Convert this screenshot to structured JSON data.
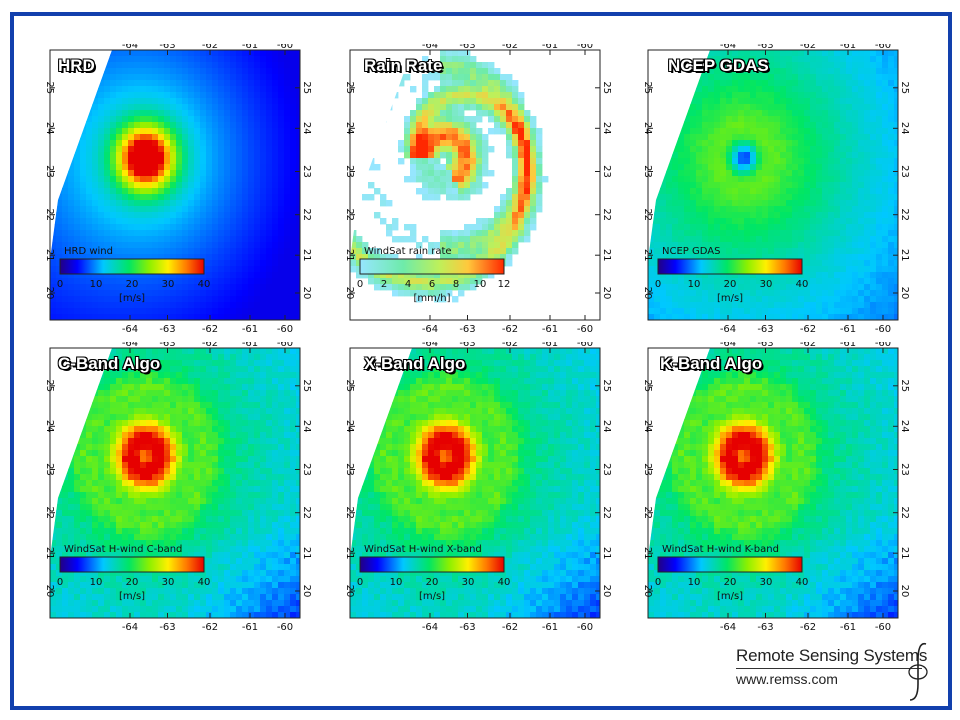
{
  "panels": [
    {
      "title": "HRD",
      "colorbar_label": "HRD wind",
      "colorbar_ticks": [
        "0",
        "10",
        "20",
        "30",
        "40"
      ],
      "units": "[m/s]",
      "palette": "rainbow",
      "field": "hrd"
    },
    {
      "title": "Rain Rate",
      "colorbar_label": "WindSat rain rate",
      "colorbar_ticks": [
        "0",
        "2",
        "4",
        "6",
        "8",
        "10",
        "12"
      ],
      "units": "[mm/h]",
      "palette": "rain",
      "field": "rain"
    },
    {
      "title": "NCEP GDAS",
      "colorbar_label": "NCEP GDAS",
      "colorbar_ticks": [
        "0",
        "10",
        "20",
        "30",
        "40"
      ],
      "units": "[m/s]",
      "palette": "rainbow",
      "field": "ncep"
    },
    {
      "title": "C-Band Algo",
      "colorbar_label": "WindSat H-wind C-band",
      "colorbar_ticks": [
        "0",
        "10",
        "20",
        "30",
        "40"
      ],
      "units": "[m/s]",
      "palette": "rainbow",
      "field": "wind"
    },
    {
      "title": "X-Band Algo",
      "colorbar_label": "WindSat H-wind X-band",
      "colorbar_ticks": [
        "0",
        "10",
        "20",
        "30",
        "40"
      ],
      "units": "[m/s]",
      "palette": "rainbow",
      "field": "wind"
    },
    {
      "title": "K-Band Algo",
      "colorbar_label": "WindSat H-wind K-band",
      "colorbar_ticks": [
        "0",
        "10",
        "20",
        "30",
        "40"
      ],
      "units": "[m/s]",
      "palette": "rainbow",
      "field": "wind"
    }
  ],
  "axes": {
    "lon_ticks": [
      "-64",
      "-63",
      "-62",
      "-61",
      "-60"
    ],
    "lat_ticks": [
      "25",
      "24",
      "23",
      "22",
      "21",
      "20"
    ]
  },
  "logo": {
    "name": "Remote Sensing Systems",
    "url": "www.remss.com"
  },
  "colors": {
    "frame": "#1240ad"
  }
}
